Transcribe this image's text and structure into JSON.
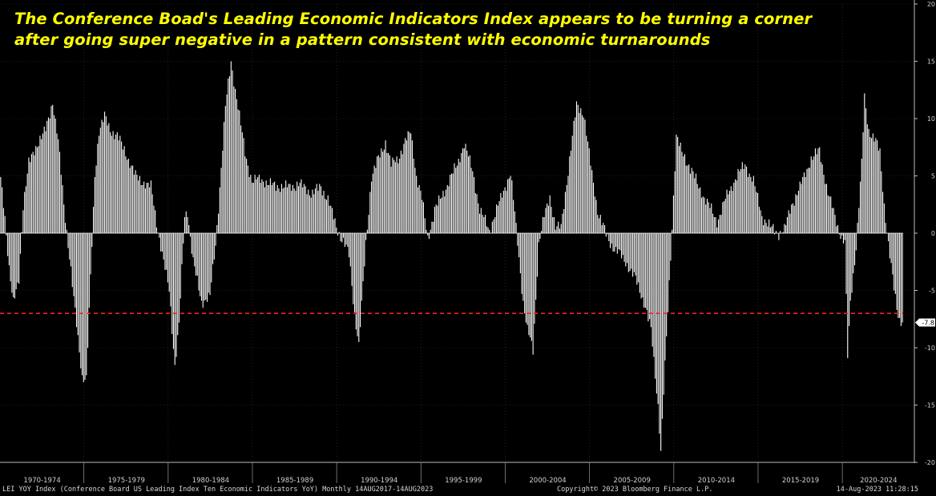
{
  "title": {
    "line1": "The Conference Boad's Leading Economic Indicators Index appears to be turning a corner",
    "line2": "after going super negative in a pattern consistent with economic turnarounds"
  },
  "footer": {
    "left": "LEI YOY Index (Conference Board US Leading Index Ten Economic Indicators YoY)  Monthly 14AUG2017-14AUG2023",
    "center": "Copyright© 2023 Bloomberg Finance L.P.",
    "right": "14-Aug-2023 11:28:15"
  },
  "colors": {
    "background": "#000000",
    "bars": "#ffffff",
    "title": "#ffff00",
    "reference_line": "#ff2020",
    "axis_text": "#d0d0d0",
    "grid": "#3a3a3a"
  },
  "chart_data": {
    "type": "bar",
    "frequency": "monthly",
    "x_start": "1970-01",
    "x_end": "2023-07",
    "period_labels": [
      "1970-1974",
      "1975-1979",
      "1980-1984",
      "1985-1989",
      "1990-1994",
      "1995-1999",
      "2000-2004",
      "2005-2009",
      "2010-2014",
      "2015-2019",
      "2020-2024"
    ],
    "ylim": [
      -20,
      20
    ],
    "yticks": [
      -20,
      -15,
      -10,
      -5,
      0,
      5,
      10,
      15,
      20
    ],
    "y_axis_position": "right",
    "grid": true,
    "reference_line": {
      "value": -7.0,
      "style": "dashed",
      "color": "#ff2020"
    },
    "last_value_label": "-7.8",
    "last_value": -7.8,
    "keypoints": [
      [
        "1970-01",
        4.7
      ],
      [
        "1970-04",
        1.5
      ],
      [
        "1970-07",
        -3.0
      ],
      [
        "1970-10",
        -6.2
      ],
      [
        "1971-02",
        -4.0
      ],
      [
        "1971-05",
        2.5
      ],
      [
        "1971-09",
        6.0
      ],
      [
        "1972-03",
        7.8
      ],
      [
        "1972-09",
        9.0
      ],
      [
        "1973-02",
        11.5
      ],
      [
        "1973-06",
        8.0
      ],
      [
        "1973-10",
        2.5
      ],
      [
        "1974-02",
        -2.0
      ],
      [
        "1974-06",
        -7.0
      ],
      [
        "1974-11",
        -12.5
      ],
      [
        "1975-02",
        -12.7
      ],
      [
        "1975-05",
        -4.0
      ],
      [
        "1975-08",
        5.0
      ],
      [
        "1975-11",
        9.0
      ],
      [
        "1976-03",
        10.2
      ],
      [
        "1976-07",
        9.0
      ],
      [
        "1976-12",
        8.5
      ],
      [
        "1977-06",
        7.0
      ],
      [
        "1978-01",
        5.0
      ],
      [
        "1978-06",
        4.5
      ],
      [
        "1978-12",
        4.0
      ],
      [
        "1979-04",
        1.0
      ],
      [
        "1979-09",
        -2.5
      ],
      [
        "1980-01",
        -5.0
      ],
      [
        "1980-05",
        -11.5
      ],
      [
        "1980-08",
        -8.0
      ],
      [
        "1980-12",
        1.5
      ],
      [
        "1981-02",
        2.0
      ],
      [
        "1981-06",
        -2.5
      ],
      [
        "1981-12",
        -6.0
      ],
      [
        "1982-06",
        -5.5
      ],
      [
        "1982-10",
        -1.0
      ],
      [
        "1983-01",
        4.0
      ],
      [
        "1983-05",
        11.0
      ],
      [
        "1983-09",
        15.0
      ],
      [
        "1984-02",
        11.0
      ],
      [
        "1984-07",
        7.0
      ],
      [
        "1984-12",
        4.5
      ],
      [
        "1985-06",
        4.8
      ],
      [
        "1986-01",
        4.2
      ],
      [
        "1986-12",
        4.0
      ],
      [
        "1987-10",
        4.3
      ],
      [
        "1988-06",
        3.5
      ],
      [
        "1989-01",
        4.0
      ],
      [
        "1989-06",
        3.0
      ],
      [
        "1989-12",
        0.5
      ],
      [
        "1990-06",
        -1.0
      ],
      [
        "1990-09",
        -2.0
      ],
      [
        "1991-01",
        -7.0
      ],
      [
        "1991-04",
        -9.8
      ],
      [
        "1991-09",
        -1.0
      ],
      [
        "1992-01",
        5.0
      ],
      [
        "1992-06",
        6.5
      ],
      [
        "1992-11",
        8.0
      ],
      [
        "1993-03",
        6.0
      ],
      [
        "1993-08",
        6.5
      ],
      [
        "1994-01",
        8.0
      ],
      [
        "1994-05",
        8.8
      ],
      [
        "1994-09",
        5.0
      ],
      [
        "1995-01",
        3.0
      ],
      [
        "1995-05",
        -0.5
      ],
      [
        "1995-10",
        2.0
      ],
      [
        "1996-06",
        4.0
      ],
      [
        "1997-02",
        6.0
      ],
      [
        "1997-07",
        7.8
      ],
      [
        "1998-01",
        5.5
      ],
      [
        "1998-06",
        2.0
      ],
      [
        "1999-01",
        0.3
      ],
      [
        "1999-06",
        2.0
      ],
      [
        "1999-12",
        4.0
      ],
      [
        "2000-04",
        5.2
      ],
      [
        "2000-08",
        0.5
      ],
      [
        "2001-01",
        -6.0
      ],
      [
        "2001-04",
        -8.5
      ],
      [
        "2001-08",
        -10.2
      ],
      [
        "2001-12",
        -1.0
      ],
      [
        "2002-04",
        1.5
      ],
      [
        "2002-08",
        3.2
      ],
      [
        "2002-12",
        0.5
      ],
      [
        "2003-04",
        0.5
      ],
      [
        "2003-08",
        4.5
      ],
      [
        "2004-03",
        11.2
      ],
      [
        "2004-08",
        10.5
      ],
      [
        "2005-01",
        6.0
      ],
      [
        "2005-06",
        2.0
      ],
      [
        "2006-01",
        -0.5
      ],
      [
        "2006-07",
        -1.5
      ],
      [
        "2007-02",
        -2.5
      ],
      [
        "2007-09",
        -4.0
      ],
      [
        "2008-03",
        -6.0
      ],
      [
        "2008-08",
        -8.5
      ],
      [
        "2009-01",
        -15.0
      ],
      [
        "2009-03",
        -19.0
      ],
      [
        "2009-05",
        -14.0
      ],
      [
        "2009-10",
        -2.0
      ],
      [
        "2010-02",
        8.5
      ],
      [
        "2010-06",
        7.0
      ],
      [
        "2011-01",
        5.5
      ],
      [
        "2011-06",
        4.0
      ],
      [
        "2012-01",
        2.5
      ],
      [
        "2012-07",
        1.0
      ],
      [
        "2013-01",
        3.0
      ],
      [
        "2013-09",
        5.0
      ],
      [
        "2014-03",
        6.0
      ],
      [
        "2014-09",
        4.5
      ],
      [
        "2015-03",
        1.5
      ],
      [
        "2015-09",
        0.5
      ],
      [
        "2016-03",
        0.0
      ],
      [
        "2016-07",
        0.3
      ],
      [
        "2016-12",
        2.5
      ],
      [
        "2017-06",
        4.0
      ],
      [
        "2018-02",
        6.5
      ],
      [
        "2018-08",
        7.2
      ],
      [
        "2019-02",
        3.5
      ],
      [
        "2019-08",
        1.0
      ],
      [
        "2019-12",
        -0.5
      ],
      [
        "2020-02",
        -0.8
      ],
      [
        "2020-04",
        -10.8
      ],
      [
        "2020-06",
        -6.0
      ],
      [
        "2020-10",
        -1.2
      ],
      [
        "2021-02",
        6.0
      ],
      [
        "2021-04",
        11.8
      ],
      [
        "2021-07",
        9.0
      ],
      [
        "2021-12",
        8.0
      ],
      [
        "2022-03",
        7.0
      ],
      [
        "2022-06",
        2.5
      ],
      [
        "2022-09",
        -1.0
      ],
      [
        "2022-12",
        -4.0
      ],
      [
        "2023-03",
        -6.5
      ],
      [
        "2023-05",
        -7.5
      ],
      [
        "2023-07",
        -7.8
      ]
    ]
  }
}
